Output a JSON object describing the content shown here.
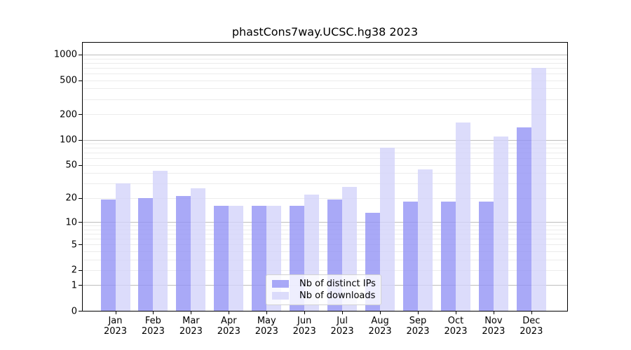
{
  "chart_data": {
    "type": "bar",
    "title": "phastCons7way.UCSC.hg38 2023",
    "categories": [
      "Jan",
      "Feb",
      "Mar",
      "Apr",
      "May",
      "Jun",
      "Jul",
      "Aug",
      "Sep",
      "Oct",
      "Nov",
      "Dec"
    ],
    "year_label": "2023",
    "series": [
      {
        "name": "Nb of distinct IPs",
        "color": "#a9a9f7",
        "values": [
          19,
          20,
          21,
          16,
          16,
          16,
          19,
          13,
          18,
          18,
          18,
          140
        ]
      },
      {
        "name": "Nb of downloads",
        "color": "#dcdcfb",
        "values": [
          30,
          43,
          26,
          16,
          16,
          22,
          27,
          80,
          44,
          160,
          110,
          700
        ]
      }
    ],
    "bar_alpha": 0.8,
    "yticks": [
      0,
      1,
      2,
      5,
      10,
      20,
      50,
      100,
      200,
      500,
      1000
    ],
    "y_scale": "log1p",
    "ylim": [
      0,
      1390
    ],
    "major_grid_values": [
      1,
      10,
      100,
      1000
    ],
    "grid": true,
    "legend_position": "lower center",
    "colors": {
      "axis": "#000000",
      "major_grid": "#bdbdbd",
      "minor_grid": "#ececec",
      "background": "#ffffff"
    }
  }
}
